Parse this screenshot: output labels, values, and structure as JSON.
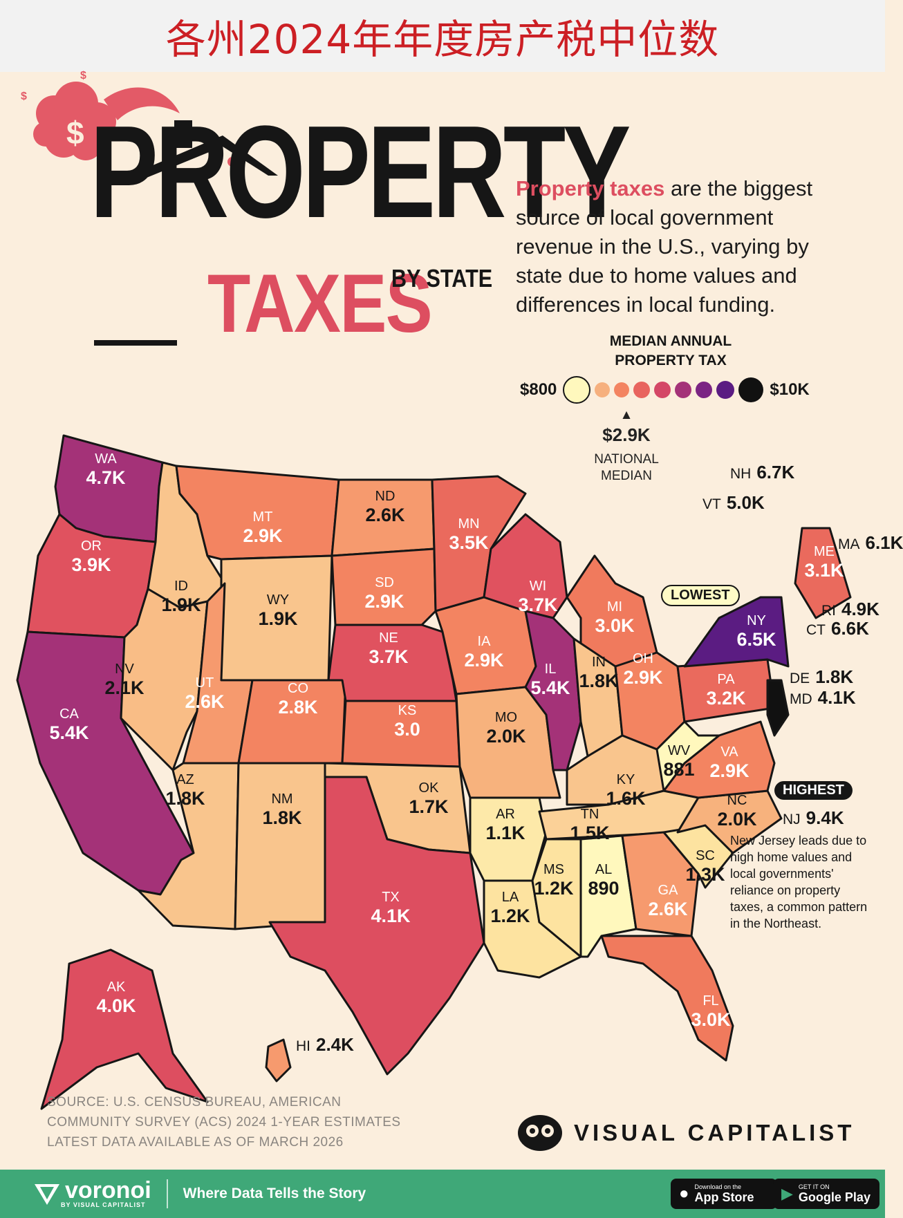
{
  "banner_title": "各州2024年年度房产税中位数",
  "headline": {
    "line1": "PROPERTY",
    "line2": "TAXES",
    "line3": "BY STATE"
  },
  "intro": {
    "highlight": "Property taxes",
    "rest": " are the biggest source of local government revenue in the U.S., varying by state due to home values and differences in local funding."
  },
  "legend": {
    "title": "MEDIAN ANNUAL PROPERTY TAX",
    "min_label": "$800",
    "max_label": "$10K",
    "national_value": "$2.9K",
    "national_label": "NATIONAL MEDIAN",
    "colors": [
      "#fff8bd",
      "#f6b07e",
      "#f38461",
      "#e8645e",
      "#d44766",
      "#a43278",
      "#7b2483",
      "#5b1c82",
      "#111111"
    ]
  },
  "callouts": {
    "lowest": "LOWEST",
    "highest": "HIGHEST",
    "nj_label": "NJ",
    "nj_value": "9.4K",
    "nj_note": "New Jersey leads due to high home values and local governments' reliance on property taxes, a common pattern in the Northeast."
  },
  "side_labels": [
    {
      "abbr": "NH",
      "value": "6.7K"
    },
    {
      "abbr": "VT",
      "value": "5.0K"
    },
    {
      "abbr": "MA",
      "value": "6.1K"
    },
    {
      "abbr": "RI",
      "value": "4.9K"
    },
    {
      "abbr": "CT",
      "value": "6.6K"
    },
    {
      "abbr": "DE",
      "value": "1.8K"
    },
    {
      "abbr": "MD",
      "value": "4.1K"
    },
    {
      "abbr": "HI",
      "value": "2.4K"
    }
  ],
  "states": [
    {
      "abbr": "WA",
      "value": "4.7K",
      "color": "#a43278"
    },
    {
      "abbr": "OR",
      "value": "3.9K",
      "color": "#e0525f"
    },
    {
      "abbr": "CA",
      "value": "5.4K",
      "color": "#a43278"
    },
    {
      "abbr": "ID",
      "value": "1.9K",
      "color": "#f9c58d"
    },
    {
      "abbr": "NV",
      "value": "2.1K",
      "color": "#f9bd86"
    },
    {
      "abbr": "MT",
      "value": "2.9K",
      "color": "#f38461"
    },
    {
      "abbr": "WY",
      "value": "1.9K",
      "color": "#f9c58d"
    },
    {
      "abbr": "UT",
      "value": "2.6K",
      "color": "#f69a6e"
    },
    {
      "abbr": "AZ",
      "value": "1.8K",
      "color": "#f9c58d"
    },
    {
      "abbr": "CO",
      "value": "2.8K",
      "color": "#f38461"
    },
    {
      "abbr": "NM",
      "value": "1.8K",
      "color": "#f9c58d"
    },
    {
      "abbr": "ND",
      "value": "2.6K",
      "color": "#f69a6e"
    },
    {
      "abbr": "SD",
      "value": "2.9K",
      "color": "#f38461"
    },
    {
      "abbr": "NE",
      "value": "3.7K",
      "color": "#e0525f"
    },
    {
      "abbr": "KS",
      "value": "3.0",
      "color": "#f07a5d"
    },
    {
      "abbr": "OK",
      "value": "1.7K",
      "color": "#f9c58d"
    },
    {
      "abbr": "TX",
      "value": "4.1K",
      "color": "#dd4e60"
    },
    {
      "abbr": "MN",
      "value": "3.5K",
      "color": "#ea6a5d"
    },
    {
      "abbr": "IA",
      "value": "2.9K",
      "color": "#f38461"
    },
    {
      "abbr": "MO",
      "value": "2.0K",
      "color": "#f7b27d"
    },
    {
      "abbr": "AR",
      "value": "1.1K",
      "color": "#fde9a9"
    },
    {
      "abbr": "LA",
      "value": "1.2K",
      "color": "#fde3a0"
    },
    {
      "abbr": "WI",
      "value": "3.7K",
      "color": "#e0525f"
    },
    {
      "abbr": "IL",
      "value": "5.4K",
      "color": "#a43278"
    },
    {
      "abbr": "MI",
      "value": "3.0K",
      "color": "#f07a5d"
    },
    {
      "abbr": "IN",
      "value": "1.8K",
      "color": "#f9c58d"
    },
    {
      "abbr": "OH",
      "value": "2.9K",
      "color": "#f38461"
    },
    {
      "abbr": "KY",
      "value": "1.6K",
      "color": "#f9c58d"
    },
    {
      "abbr": "TN",
      "value": "1.5K",
      "color": "#fbd198"
    },
    {
      "abbr": "MS",
      "value": "1.2K",
      "color": "#fde3a0"
    },
    {
      "abbr": "AL",
      "value": "890",
      "color": "#fff8bd"
    },
    {
      "abbr": "GA",
      "value": "2.6K",
      "color": "#f69a6e"
    },
    {
      "abbr": "FL",
      "value": "3.0K",
      "color": "#f07a5d"
    },
    {
      "abbr": "SC",
      "value": "1.3K",
      "color": "#fde3a0"
    },
    {
      "abbr": "NC",
      "value": "2.0K",
      "color": "#f7b27d"
    },
    {
      "abbr": "VA",
      "value": "2.9K",
      "color": "#f38461"
    },
    {
      "abbr": "WV",
      "value": "881",
      "color": "#fff8bd"
    },
    {
      "abbr": "PA",
      "value": "3.2K",
      "color": "#ea6a5d"
    },
    {
      "abbr": "NY",
      "value": "6.5K",
      "color": "#5b1c82"
    },
    {
      "abbr": "ME",
      "value": "3.1K",
      "color": "#ea6a5d"
    },
    {
      "abbr": "AK",
      "value": "4.0K",
      "color": "#dd4e60"
    },
    {
      "abbr": "HI",
      "value": "2.4K",
      "color": "#f69a6e"
    },
    {
      "abbr": "NJ",
      "value": "9.4K",
      "color": "#111111"
    }
  ],
  "source": "SOURCE: U.S. CENSUS BUREAU, AMERICAN COMMUNITY SURVEY (ACS) 2024 1-YEAR ESTIMATES LATEST DATA AVAILABLE AS OF MARCH 2026",
  "publisher": "VISUAL CAPITALIST",
  "footer": {
    "brand": "voronoi",
    "brand_by": "BY VISUAL CAPITALIST",
    "tagline": "Where Data Tells the Story",
    "appstore_small": "Download on the",
    "appstore_big": "App Store",
    "googleplay_small": "GET IT ON",
    "googleplay_big": "Google Play"
  }
}
